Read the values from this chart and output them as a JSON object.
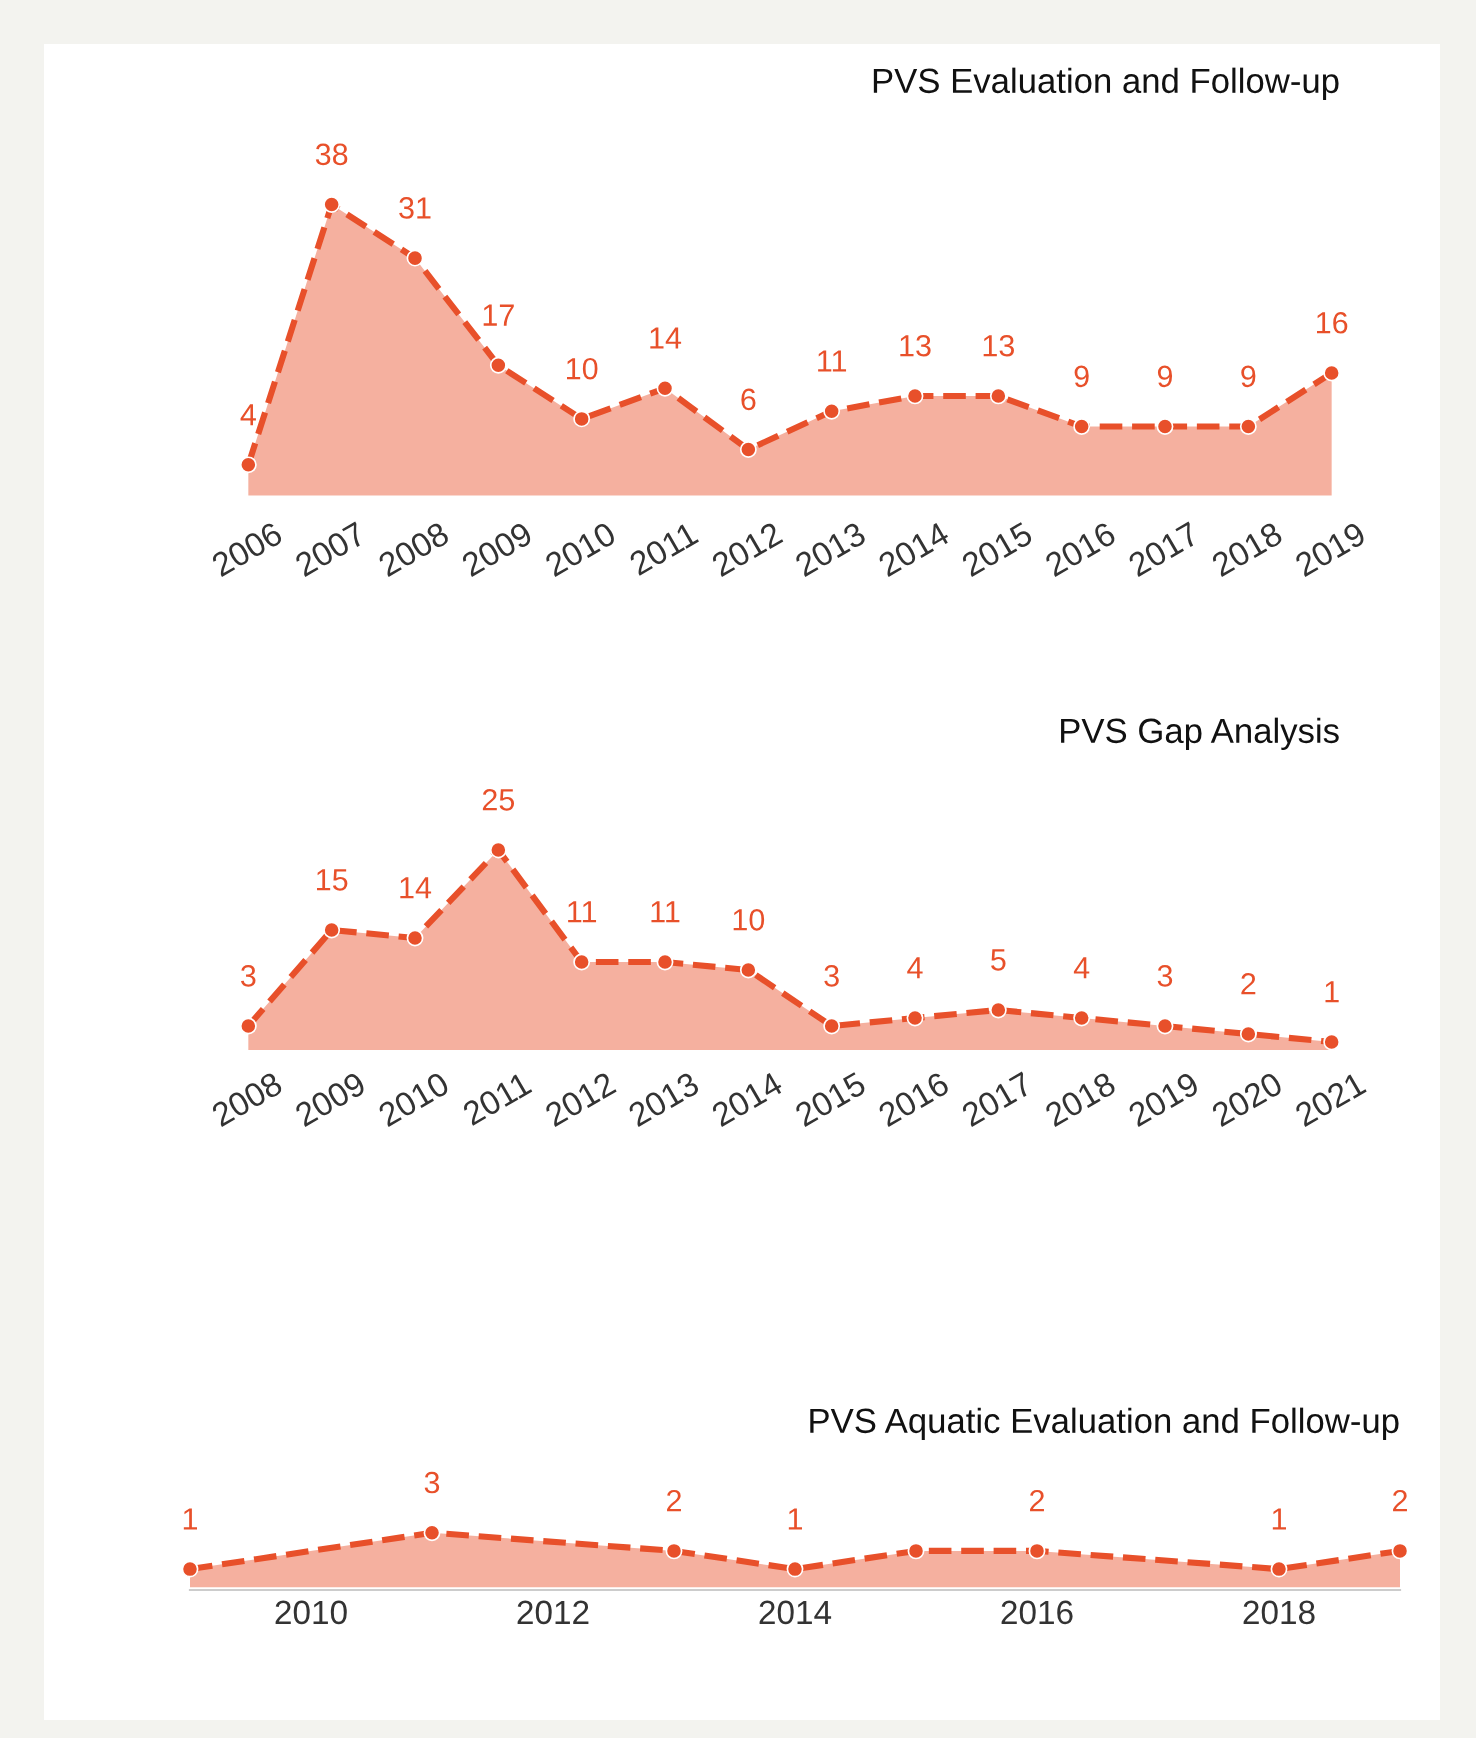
{
  "chart_data": [
    {
      "type": "area",
      "title": "PVS Evaluation and Follow-up",
      "categories": [
        "2006",
        "2007",
        "2008",
        "2009",
        "2010",
        "2011",
        "2012",
        "2013",
        "2014",
        "2015",
        "2016",
        "2017",
        "2018",
        "2019"
      ],
      "series": [
        {
          "color": "#e8502a",
          "values": [
            4,
            38,
            31,
            17,
            10,
            14,
            6,
            11,
            13,
            13,
            9,
            9,
            9,
            16
          ]
        }
      ],
      "data_labels": true,
      "marker": "circle",
      "line_style": "dashed",
      "tick_labels": "x",
      "grid": false,
      "legend": false
    },
    {
      "type": "area",
      "title": "PVS Gap Analysis",
      "categories": [
        "2008",
        "2009",
        "2010",
        "2011",
        "2012",
        "2013",
        "2014",
        "2015",
        "2016",
        "2017",
        "2018",
        "2019",
        "2020",
        "2021"
      ],
      "series": [
        {
          "color": "#e8502a",
          "values": [
            3,
            15,
            14,
            25,
            11,
            11,
            10,
            3,
            4,
            5,
            4,
            3,
            2,
            1
          ]
        }
      ],
      "data_labels": true,
      "marker": "circle",
      "line_style": "dashed",
      "tick_labels": "x",
      "grid": false,
      "legend": false
    },
    {
      "type": "area",
      "title": "PVS Aquatic Evaluation and Follow-up",
      "x": [
        2009,
        2011,
        2013,
        2014,
        2015,
        2016,
        2018,
        2019
      ],
      "xlim": [
        2009,
        2019
      ],
      "xticks": [
        2010,
        2012,
        2014,
        2016,
        2018
      ],
      "series": [
        {
          "color": "#e8502a",
          "values": [
            1,
            3,
            2,
            1,
            2,
            2,
            1,
            2
          ],
          "value_labels": [
            "1",
            "3",
            "2",
            "1",
            null,
            "2",
            "1",
            "2"
          ]
        }
      ],
      "marker": "circle",
      "line_style": "dashed",
      "tick_labels": "x",
      "grid": false,
      "legend": false
    }
  ]
}
